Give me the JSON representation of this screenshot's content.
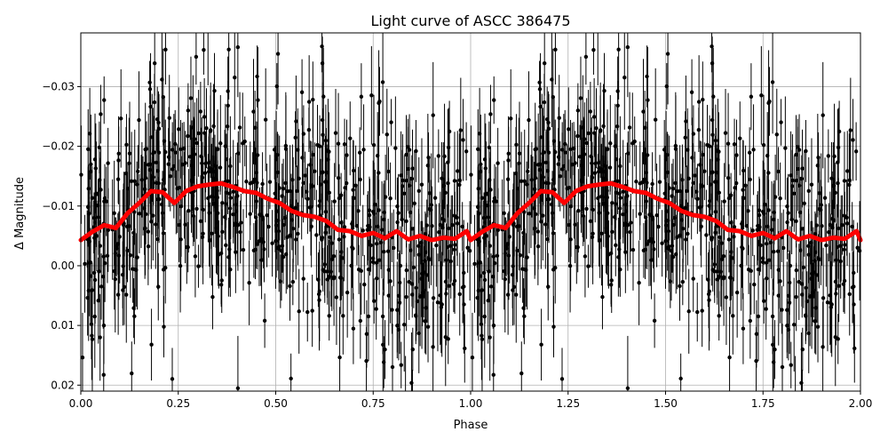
{
  "chart_data": {
    "type": "scatter",
    "title": "Light curve of ASCC 386475",
    "xlabel": "Phase",
    "ylabel": "Δ Magnitude",
    "xlim": [
      0.0,
      2.0
    ],
    "ylim": [
      0.021,
      -0.039
    ],
    "y_inverted": true,
    "grid": true,
    "x_ticks": [
      0.0,
      0.25,
      0.5,
      0.75,
      1.0,
      1.25,
      1.5,
      1.75,
      2.0
    ],
    "x_tick_labels": [
      "0.00",
      "0.25",
      "0.50",
      "0.75",
      "1.00",
      "1.25",
      "1.50",
      "1.75",
      "2.00"
    ],
    "y_ticks": [
      -0.03,
      -0.02,
      -0.01,
      0.0,
      0.01,
      0.02
    ],
    "y_tick_labels": [
      "−0.03",
      "−0.02",
      "−0.01",
      "0.00",
      "0.01",
      "0.02"
    ],
    "observations": {
      "color": "#000000",
      "errorbar": true,
      "n_points": 1400,
      "period_in_phase": 1.0,
      "typical_error": 0.006,
      "scatter_sigma": 0.01
    },
    "binned_model": {
      "color": "#ff0000",
      "x": [
        0.0,
        0.03,
        0.06,
        0.09,
        0.12,
        0.15,
        0.18,
        0.21,
        0.24,
        0.27,
        0.3,
        0.33,
        0.36,
        0.39,
        0.42,
        0.45,
        0.48,
        0.51,
        0.54,
        0.57,
        0.6,
        0.63,
        0.66,
        0.69,
        0.72,
        0.75,
        0.78,
        0.81,
        0.84,
        0.87,
        0.9,
        0.93,
        0.96,
        0.99,
        1.0
      ],
      "y": [
        -0.0043,
        -0.0057,
        -0.0068,
        -0.0063,
        -0.0088,
        -0.0105,
        -0.0125,
        -0.0123,
        -0.0105,
        -0.0125,
        -0.0133,
        -0.0136,
        -0.0138,
        -0.0132,
        -0.0125,
        -0.0122,
        -0.0112,
        -0.0105,
        -0.0092,
        -0.0085,
        -0.0082,
        -0.0075,
        -0.006,
        -0.0058,
        -0.005,
        -0.0055,
        -0.0046,
        -0.0058,
        -0.0044,
        -0.005,
        -0.0043,
        -0.0047,
        -0.0045,
        -0.0058,
        -0.0043
      ]
    }
  }
}
